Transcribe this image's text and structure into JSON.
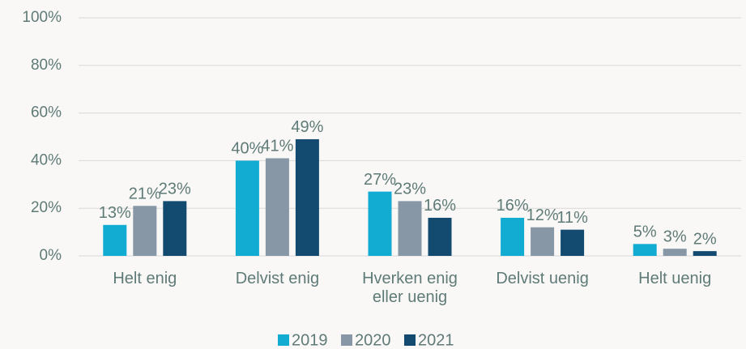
{
  "chart_data": {
    "type": "bar",
    "categories": [
      "Helt enig",
      "Delvist enig",
      "Hverken enig eller uenig",
      "Delvist uenig",
      "Helt uenig"
    ],
    "series": [
      {
        "name": "2019",
        "color": "#12abd1",
        "values": [
          13,
          40,
          27,
          16,
          5
        ],
        "value_labels": [
          "13%",
          "40%",
          "27%",
          "16%",
          "5%"
        ]
      },
      {
        "name": "2020",
        "color": "#8797a5",
        "values": [
          21,
          41,
          23,
          12,
          3
        ],
        "value_labels": [
          "21%",
          "41%",
          "23%",
          "12%",
          "3%"
        ]
      },
      {
        "name": "2021",
        "color": "#134a70",
        "values": [
          23,
          49,
          16,
          11,
          2
        ],
        "value_labels": [
          "23%",
          "49%",
          "16%",
          "11%",
          "2%"
        ]
      }
    ],
    "ylim": [
      0,
      100
    ],
    "yticks": [
      {
        "value": 0,
        "label": "0%"
      },
      {
        "value": 20,
        "label": "20%"
      },
      {
        "value": 40,
        "label": "40%"
      },
      {
        "value": 60,
        "label": "60%"
      },
      {
        "value": 80,
        "label": "80%"
      },
      {
        "value": 100,
        "label": "100%"
      }
    ],
    "grid": true,
    "legend": "bottom"
  }
}
